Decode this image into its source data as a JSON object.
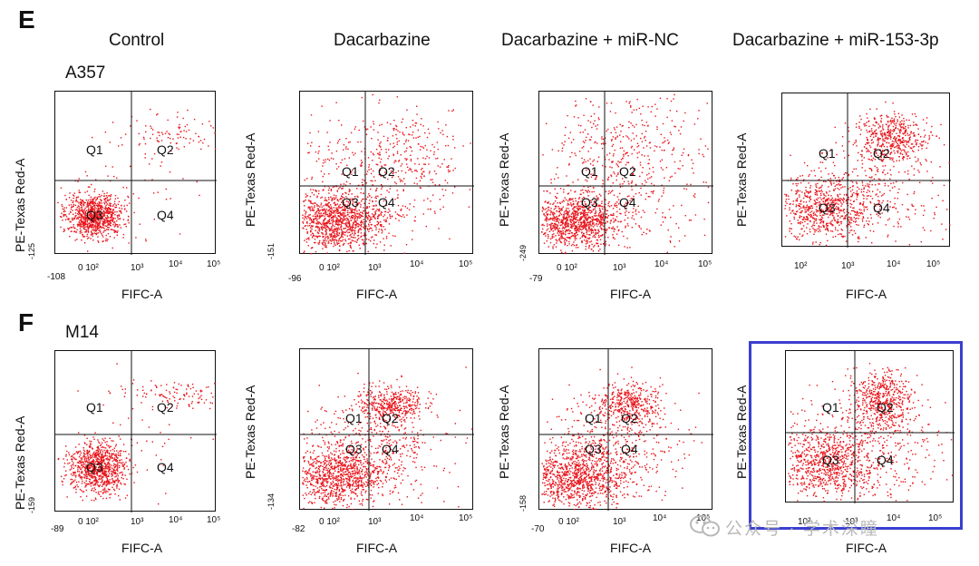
{
  "panels": [
    {
      "letter": "E",
      "row_label": "A357"
    },
    {
      "letter": "F",
      "row_label": "M14"
    }
  ],
  "columns": [
    "Control",
    "Dacarbazine",
    "Dacarbazine + miR-NC",
    "Dacarbazine + miR-153-3p"
  ],
  "axis": {
    "y_label": "PE-Texas Red-A",
    "x_label": "FIFC-A"
  },
  "quadrants": [
    "Q1",
    "Q2",
    "Q3",
    "Q4"
  ],
  "tick_labels": {
    "e_control_ymin": "-125",
    "e_control_xmin": "-108",
    "e_dac_ymin": "-151",
    "e_dac_xmin": "-96",
    "e_nc_ymin": "-249",
    "e_nc_xmin": "-79",
    "f_control_ymin": "-159",
    "f_control_xmin": "-89",
    "f_dac_ymin": "-134",
    "f_dac_xmin": "-82",
    "f_nc_ymin": "-158",
    "f_nc_xmin": "-70"
  },
  "dot_color": "#e8141b",
  "highlight_color": "#3b3fd1",
  "watermark": "公众号 · 学术深瞳",
  "watermark_icon": "wechat-icon"
}
